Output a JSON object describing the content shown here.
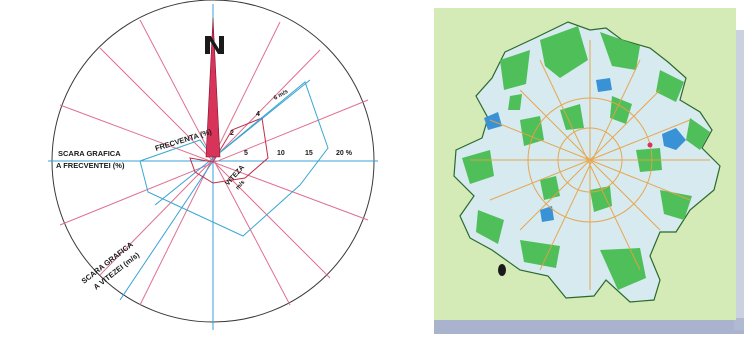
{
  "wind_rose": {
    "north_mark": "N",
    "label_frequency_axis": "FRECVENTA (%)",
    "label_frequency_scale_line1": "SCARA GRAFICA",
    "label_frequency_scale_line2": "A FRECVENTEI (%)",
    "label_speed_scale_line1": "SCARA GRAFICA",
    "label_speed_scale_line2": "A VITEZEI (m/s)",
    "label_speed_axis": "VITEZA",
    "label_speed_unit": "m/s",
    "label_speed_ray": "6 m/s",
    "tick_2": "2",
    "tick_4": "4",
    "tick_5": "5",
    "tick_10": "10",
    "tick_15": "15",
    "tick_20": "20 %",
    "colors": {
      "circle": "#3a3a3a",
      "cross_axes": "#3aa0d8",
      "frequency_rays": "#e07090",
      "speed_polygon": "#c0304a",
      "frequency_polygon": "#38a8d0",
      "north_bar": "#d8345a"
    }
  },
  "city_map": {
    "colors": {
      "background": "#d4ebb8",
      "urban": "#d6eaf0",
      "green": "#4fbf5a",
      "water": "#3a92d6",
      "roads": "#e8a040",
      "border": "#2a6a2a",
      "shadow": "#9aa6c4"
    }
  }
}
